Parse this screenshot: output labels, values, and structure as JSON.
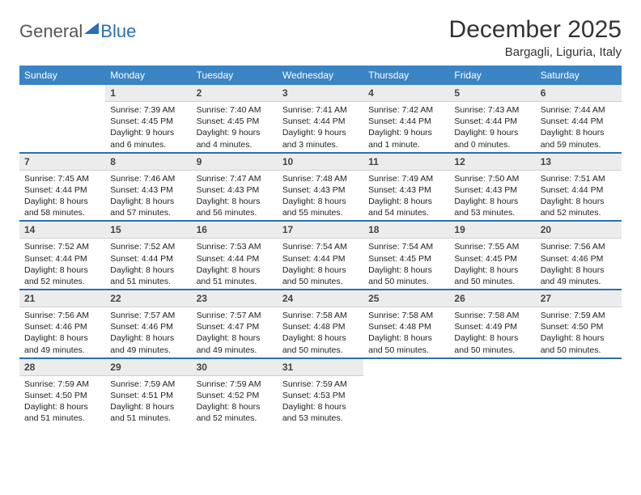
{
  "logo": {
    "part1": "General",
    "part2": "Blue"
  },
  "title": "December 2025",
  "location": "Bargagli, Liguria, Italy",
  "style": {
    "header_bg": "#3b84c4",
    "header_fg": "#ffffff",
    "daynum_bg": "#ececec",
    "rule_color": "#2a6fb5",
    "body_font_size": 10.5,
    "title_font_size": 30
  },
  "weekdays": [
    "Sunday",
    "Monday",
    "Tuesday",
    "Wednesday",
    "Thursday",
    "Friday",
    "Saturday"
  ],
  "weeks": [
    [
      {
        "n": "",
        "sr": "",
        "ss": "",
        "dl": ""
      },
      {
        "n": "1",
        "sr": "Sunrise: 7:39 AM",
        "ss": "Sunset: 4:45 PM",
        "dl": "Daylight: 9 hours and 6 minutes."
      },
      {
        "n": "2",
        "sr": "Sunrise: 7:40 AM",
        "ss": "Sunset: 4:45 PM",
        "dl": "Daylight: 9 hours and 4 minutes."
      },
      {
        "n": "3",
        "sr": "Sunrise: 7:41 AM",
        "ss": "Sunset: 4:44 PM",
        "dl": "Daylight: 9 hours and 3 minutes."
      },
      {
        "n": "4",
        "sr": "Sunrise: 7:42 AM",
        "ss": "Sunset: 4:44 PM",
        "dl": "Daylight: 9 hours and 1 minute."
      },
      {
        "n": "5",
        "sr": "Sunrise: 7:43 AM",
        "ss": "Sunset: 4:44 PM",
        "dl": "Daylight: 9 hours and 0 minutes."
      },
      {
        "n": "6",
        "sr": "Sunrise: 7:44 AM",
        "ss": "Sunset: 4:44 PM",
        "dl": "Daylight: 8 hours and 59 minutes."
      }
    ],
    [
      {
        "n": "7",
        "sr": "Sunrise: 7:45 AM",
        "ss": "Sunset: 4:44 PM",
        "dl": "Daylight: 8 hours and 58 minutes."
      },
      {
        "n": "8",
        "sr": "Sunrise: 7:46 AM",
        "ss": "Sunset: 4:43 PM",
        "dl": "Daylight: 8 hours and 57 minutes."
      },
      {
        "n": "9",
        "sr": "Sunrise: 7:47 AM",
        "ss": "Sunset: 4:43 PM",
        "dl": "Daylight: 8 hours and 56 minutes."
      },
      {
        "n": "10",
        "sr": "Sunrise: 7:48 AM",
        "ss": "Sunset: 4:43 PM",
        "dl": "Daylight: 8 hours and 55 minutes."
      },
      {
        "n": "11",
        "sr": "Sunrise: 7:49 AM",
        "ss": "Sunset: 4:43 PM",
        "dl": "Daylight: 8 hours and 54 minutes."
      },
      {
        "n": "12",
        "sr": "Sunrise: 7:50 AM",
        "ss": "Sunset: 4:43 PM",
        "dl": "Daylight: 8 hours and 53 minutes."
      },
      {
        "n": "13",
        "sr": "Sunrise: 7:51 AM",
        "ss": "Sunset: 4:44 PM",
        "dl": "Daylight: 8 hours and 52 minutes."
      }
    ],
    [
      {
        "n": "14",
        "sr": "Sunrise: 7:52 AM",
        "ss": "Sunset: 4:44 PM",
        "dl": "Daylight: 8 hours and 52 minutes."
      },
      {
        "n": "15",
        "sr": "Sunrise: 7:52 AM",
        "ss": "Sunset: 4:44 PM",
        "dl": "Daylight: 8 hours and 51 minutes."
      },
      {
        "n": "16",
        "sr": "Sunrise: 7:53 AM",
        "ss": "Sunset: 4:44 PM",
        "dl": "Daylight: 8 hours and 51 minutes."
      },
      {
        "n": "17",
        "sr": "Sunrise: 7:54 AM",
        "ss": "Sunset: 4:44 PM",
        "dl": "Daylight: 8 hours and 50 minutes."
      },
      {
        "n": "18",
        "sr": "Sunrise: 7:54 AM",
        "ss": "Sunset: 4:45 PM",
        "dl": "Daylight: 8 hours and 50 minutes."
      },
      {
        "n": "19",
        "sr": "Sunrise: 7:55 AM",
        "ss": "Sunset: 4:45 PM",
        "dl": "Daylight: 8 hours and 50 minutes."
      },
      {
        "n": "20",
        "sr": "Sunrise: 7:56 AM",
        "ss": "Sunset: 4:46 PM",
        "dl": "Daylight: 8 hours and 49 minutes."
      }
    ],
    [
      {
        "n": "21",
        "sr": "Sunrise: 7:56 AM",
        "ss": "Sunset: 4:46 PM",
        "dl": "Daylight: 8 hours and 49 minutes."
      },
      {
        "n": "22",
        "sr": "Sunrise: 7:57 AM",
        "ss": "Sunset: 4:46 PM",
        "dl": "Daylight: 8 hours and 49 minutes."
      },
      {
        "n": "23",
        "sr": "Sunrise: 7:57 AM",
        "ss": "Sunset: 4:47 PM",
        "dl": "Daylight: 8 hours and 49 minutes."
      },
      {
        "n": "24",
        "sr": "Sunrise: 7:58 AM",
        "ss": "Sunset: 4:48 PM",
        "dl": "Daylight: 8 hours and 50 minutes."
      },
      {
        "n": "25",
        "sr": "Sunrise: 7:58 AM",
        "ss": "Sunset: 4:48 PM",
        "dl": "Daylight: 8 hours and 50 minutes."
      },
      {
        "n": "26",
        "sr": "Sunrise: 7:58 AM",
        "ss": "Sunset: 4:49 PM",
        "dl": "Daylight: 8 hours and 50 minutes."
      },
      {
        "n": "27",
        "sr": "Sunrise: 7:59 AM",
        "ss": "Sunset: 4:50 PM",
        "dl": "Daylight: 8 hours and 50 minutes."
      }
    ],
    [
      {
        "n": "28",
        "sr": "Sunrise: 7:59 AM",
        "ss": "Sunset: 4:50 PM",
        "dl": "Daylight: 8 hours and 51 minutes."
      },
      {
        "n": "29",
        "sr": "Sunrise: 7:59 AM",
        "ss": "Sunset: 4:51 PM",
        "dl": "Daylight: 8 hours and 51 minutes."
      },
      {
        "n": "30",
        "sr": "Sunrise: 7:59 AM",
        "ss": "Sunset: 4:52 PM",
        "dl": "Daylight: 8 hours and 52 minutes."
      },
      {
        "n": "31",
        "sr": "Sunrise: 7:59 AM",
        "ss": "Sunset: 4:53 PM",
        "dl": "Daylight: 8 hours and 53 minutes."
      },
      {
        "n": "",
        "sr": "",
        "ss": "",
        "dl": ""
      },
      {
        "n": "",
        "sr": "",
        "ss": "",
        "dl": ""
      },
      {
        "n": "",
        "sr": "",
        "ss": "",
        "dl": ""
      }
    ]
  ]
}
